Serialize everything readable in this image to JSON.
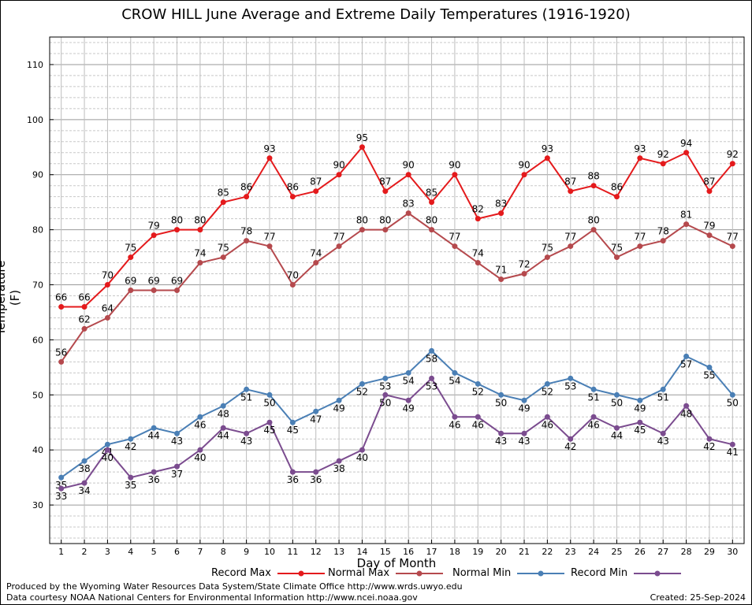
{
  "chart_data": {
    "type": "line",
    "title": "CROW HILL June Average and Extreme Daily Temperatures (1916-1920)",
    "xlabel": "Day of Month",
    "ylabel": "Temperature (F)",
    "x": [
      1,
      2,
      3,
      4,
      5,
      6,
      7,
      8,
      9,
      10,
      11,
      12,
      13,
      14,
      15,
      16,
      17,
      18,
      19,
      20,
      21,
      22,
      23,
      24,
      25,
      26,
      27,
      28,
      29,
      30
    ],
    "xlim": [
      0.5,
      30.5
    ],
    "ylim": [
      23,
      115
    ],
    "yticks": [
      30,
      40,
      50,
      60,
      70,
      80,
      90,
      100,
      110
    ],
    "grid": true,
    "legend_position": "bottom",
    "series": [
      {
        "name": "Record Max",
        "color": "#e41a1c",
        "values": [
          66,
          66,
          70,
          75,
          79,
          80,
          80,
          85,
          86,
          93,
          86,
          87,
          90,
          95,
          87,
          90,
          85,
          90,
          82,
          83,
          90,
          93,
          87,
          88,
          86,
          93,
          92,
          94,
          87,
          92
        ]
      },
      {
        "name": "Normal Max",
        "color": "#b5494d",
        "values": [
          56,
          62,
          64,
          69,
          69,
          69,
          74,
          75,
          78,
          77,
          70,
          74,
          77,
          80,
          80,
          83,
          80,
          77,
          74,
          71,
          72,
          75,
          77,
          80,
          75,
          77,
          78,
          81,
          79,
          77
        ]
      },
      {
        "name": "Normal Min",
        "color": "#4a7fb5",
        "values": [
          35,
          38,
          41,
          42,
          44,
          43,
          46,
          48,
          51,
          50,
          45,
          47,
          49,
          52,
          53,
          54,
          58,
          54,
          52,
          50,
          49,
          52,
          53,
          51,
          50,
          49,
          51,
          57,
          55,
          50
        ]
      },
      {
        "name": "Record Min",
        "color": "#7b4c8f",
        "values": [
          33,
          34,
          40,
          35,
          36,
          37,
          40,
          44,
          43,
          45,
          36,
          36,
          38,
          40,
          50,
          49,
          53,
          46,
          46,
          43,
          43,
          46,
          42,
          46,
          44,
          45,
          43,
          48,
          42,
          41
        ]
      }
    ]
  },
  "footer": {
    "line1": "Produced by the Wyoming Water Resources Data System/State Climate Office http://www.wrds.uwyo.edu",
    "line2": "Data courtesy NOAA National Centers for Environmental Information http://www.ncei.noaa.gov",
    "created": "Created:  25-Sep-2024"
  }
}
